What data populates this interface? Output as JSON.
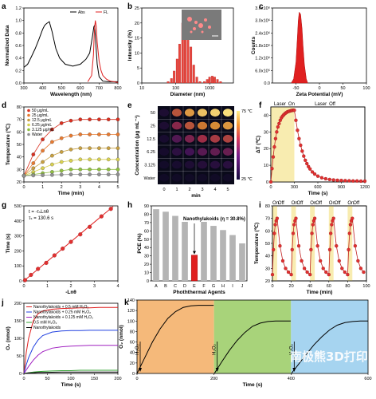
{
  "panel_labels": [
    "a",
    "b",
    "c",
    "d",
    "e",
    "f",
    "g",
    "h",
    "i",
    "j",
    "k"
  ],
  "watermark": "南极熊3D打印",
  "chart_data": [
    {
      "id": "a",
      "type": "line",
      "xlabel": "Wavelength (nm)",
      "ylabel": "Normalized Data",
      "xlim": [
        300,
        800
      ],
      "ylim": [
        0,
        1.2
      ],
      "xticks": [
        300,
        400,
        500,
        600,
        700,
        800
      ],
      "yticks": [
        "0.0",
        "0.2",
        "0.4",
        "0.6",
        "0.8",
        "1.0",
        "1.2"
      ],
      "legend": "top-right",
      "series": [
        {
          "name": "Abs",
          "color": "#000000",
          "x": [
            300,
            320,
            340,
            360,
            380,
            400,
            410,
            420,
            430,
            435,
            440,
            450,
            460,
            470,
            490,
            520,
            560,
            600,
            630,
            650,
            665,
            672,
            676,
            680,
            690,
            700,
            720,
            750,
            800
          ],
          "y": [
            0.25,
            0.3,
            0.42,
            0.55,
            0.7,
            0.86,
            0.92,
            0.95,
            0.97,
            0.98,
            0.93,
            0.82,
            0.68,
            0.55,
            0.4,
            0.3,
            0.27,
            0.3,
            0.38,
            0.48,
            0.75,
            0.9,
            0.92,
            0.75,
            0.3,
            0.1,
            0.03,
            0.02,
            0.02
          ]
        },
        {
          "name": "FL",
          "color": "#e02020",
          "x": [
            640,
            660,
            670,
            675,
            680,
            685,
            690,
            700,
            710,
            720,
            740,
            760,
            800
          ],
          "y": [
            0.02,
            0.12,
            0.45,
            0.85,
            1.0,
            0.9,
            0.65,
            0.35,
            0.2,
            0.12,
            0.06,
            0.03,
            0.01
          ]
        }
      ]
    },
    {
      "id": "b",
      "type": "bar",
      "xlabel": "Diameter (nm)",
      "ylabel": "Intensity (%)",
      "xscale": "log",
      "xlim": [
        10,
        5000
      ],
      "ylim": [
        0,
        25
      ],
      "xticks": [
        10,
        100,
        1000
      ],
      "yticks": [
        0,
        5,
        10,
        15,
        20,
        25
      ],
      "x": [
        60,
        75,
        90,
        110,
        130,
        160,
        190,
        230,
        280,
        340,
        420,
        520,
        700,
        850,
        1000,
        1200,
        1400,
        1700,
        2100
      ],
      "values": [
        0.5,
        1.5,
        4,
        8,
        13,
        20,
        22,
        18,
        12,
        6,
        2,
        0.5,
        0.5,
        1.2,
        2,
        2.3,
        2,
        1.2,
        0.5
      ],
      "inset_scale_bar": true
    },
    {
      "id": "c",
      "type": "area",
      "xlabel": "Zeta Potential (mV)",
      "ylabel": "Counts",
      "xlim": [
        -100,
        100
      ],
      "ylim": [
        0,
        3600000
      ],
      "xticks": [
        -50,
        0,
        50,
        100
      ],
      "yticks": [
        "0.0",
        "6.0x10⁵",
        "1.2x10⁶",
        "1.8x10⁶",
        "2.4x10⁶",
        "3.0x10⁶",
        "3.6x10⁶"
      ],
      "x": [
        -60,
        -55,
        -50,
        -47,
        -45,
        -43,
        -40,
        -37,
        -35,
        -32,
        -28,
        -25
      ],
      "y": [
        0,
        200000,
        1000000,
        2200000,
        3000000,
        3400000,
        3300000,
        2600000,
        1800000,
        900000,
        200000,
        0
      ]
    },
    {
      "id": "d",
      "type": "line",
      "xlabel": "Time (min)",
      "ylabel": "Temperature (℃)",
      "xlim": [
        0,
        5
      ],
      "ylim": [
        20,
        80
      ],
      "xticks": [
        0,
        1,
        2,
        3,
        4,
        5
      ],
      "yticks": [
        20,
        30,
        40,
        50,
        60,
        70,
        80
      ],
      "legend": "top-left",
      "x": [
        0,
        0.5,
        1,
        1.5,
        2,
        2.5,
        3,
        3.5,
        4,
        4.5,
        5
      ],
      "series": [
        {
          "name": "50 μg/mL",
          "color": "#d93020",
          "y": [
            25,
            42,
            54,
            62,
            67,
            69,
            70,
            70,
            70,
            70,
            70
          ]
        },
        {
          "name": "25 μg/mL",
          "color": "#e87a30",
          "y": [
            25,
            35,
            45,
            52,
            55,
            57,
            58,
            58,
            58,
            58,
            58
          ]
        },
        {
          "name": "12.5 μg/mL",
          "color": "#c8a040",
          "y": [
            25,
            31,
            36,
            41,
            44,
            46,
            47,
            47,
            47,
            47,
            47
          ]
        },
        {
          "name": "6.25 μg/mL",
          "color": "#d8d050",
          "y": [
            25,
            28,
            31,
            34,
            36,
            37,
            38,
            38,
            38,
            38,
            38
          ]
        },
        {
          "name": "3.125 μg/mL",
          "color": "#90c040",
          "y": [
            25,
            26,
            27,
            28,
            29,
            30,
            30,
            30,
            30,
            30,
            30
          ]
        },
        {
          "name": "Water",
          "color": "#909090",
          "y": [
            25,
            25.2,
            25.4,
            25.6,
            25.8,
            26,
            26,
            26,
            26,
            26,
            26
          ]
        }
      ]
    },
    {
      "id": "e",
      "type": "heatmap",
      "xlabel": "min",
      "ylabel": "Concentration (μg mL⁻¹)",
      "columns": [
        "0",
        "1",
        "2",
        "3",
        "4",
        "5"
      ],
      "rows": [
        "50",
        "25",
        "12.5",
        "6.25",
        "3.125",
        "Water"
      ],
      "colorbar": {
        "top": "75 ℃",
        "bottom": "25 ℃"
      },
      "intensity": [
        [
          0.15,
          0.7,
          0.85,
          0.92,
          0.95,
          0.97
        ],
        [
          0.15,
          0.55,
          0.7,
          0.78,
          0.82,
          0.84
        ],
        [
          0.12,
          0.4,
          0.52,
          0.6,
          0.64,
          0.66
        ],
        [
          0.1,
          0.25,
          0.35,
          0.42,
          0.45,
          0.47
        ],
        [
          0.08,
          0.12,
          0.16,
          0.2,
          0.22,
          0.23
        ],
        [
          0.05,
          0.05,
          0.05,
          0.05,
          0.05,
          0.05
        ]
      ]
    },
    {
      "id": "f",
      "type": "scatter",
      "xlabel": "Time (s)",
      "ylabel": "ΔT (℃)",
      "xlim": [
        0,
        1200
      ],
      "ylim": [
        0,
        45
      ],
      "xticks": [
        0,
        300,
        600,
        900,
        1200
      ],
      "yticks": [
        0,
        10,
        20,
        30,
        40
      ],
      "annotations": [
        {
          "prefix": "Laser",
          "state": "On",
          "x": 40
        },
        {
          "prefix": "Laser",
          "state": "Off",
          "x": 560
        }
      ],
      "laser_on_range": [
        0,
        300
      ],
      "x": [
        0,
        15,
        30,
        45,
        60,
        75,
        90,
        105,
        120,
        135,
        150,
        165,
        180,
        195,
        210,
        225,
        240,
        255,
        270,
        285,
        300,
        320,
        340,
        360,
        380,
        400,
        420,
        440,
        460,
        480,
        500,
        530,
        560,
        600,
        650,
        700,
        750,
        800,
        850,
        900,
        950,
        1000,
        1050,
        1100,
        1150,
        1200
      ],
      "y": [
        0,
        8,
        15,
        21,
        26,
        30,
        33,
        35,
        37,
        38.5,
        39.5,
        40.3,
        41,
        41.5,
        42,
        42.3,
        42.5,
        42.7,
        42.9,
        43,
        43,
        37,
        31,
        26,
        22,
        18.5,
        15.5,
        13,
        11,
        9.2,
        7.8,
        6,
        4.7,
        3.5,
        2.5,
        1.9,
        1.5,
        1.2,
        1,
        0.9,
        0.8,
        0.7,
        0.6,
        0.6,
        0.5,
        0.5
      ]
    },
    {
      "id": "g",
      "type": "scatter",
      "xlabel": "-Lnθ",
      "ylabel": "Time (s)",
      "xlim": [
        0,
        4
      ],
      "ylim": [
        0,
        500
      ],
      "xticks": [
        0,
        1,
        2,
        3,
        4
      ],
      "yticks": [
        0,
        100,
        200,
        300,
        400,
        500
      ],
      "annotation_lines": [
        "t = -τₛLnθ",
        "τₛ = 130.6 s"
      ],
      "fit": {
        "slope": 130.6,
        "intercept": 0
      },
      "x": [
        0.05,
        0.3,
        0.6,
        0.95,
        1.3,
        1.65,
        2.0,
        2.4,
        2.8,
        3.3,
        3.7
      ],
      "y": [
        5,
        40,
        80,
        120,
        170,
        215,
        260,
        310,
        360,
        430,
        480
      ]
    },
    {
      "id": "h",
      "type": "bar",
      "xlabel": "Phoththermal Agents",
      "ylabel": "PCE (%)",
      "ylim": [
        0,
        90
      ],
      "yticks": [
        0,
        10,
        20,
        30,
        40,
        50,
        60,
        70,
        80,
        90
      ],
      "categories": [
        "A",
        "B",
        "C",
        "D",
        "E",
        "F",
        "G",
        "H",
        "I",
        "J"
      ],
      "values": [
        86,
        83,
        78,
        73,
        31,
        72,
        66,
        61,
        55,
        45
      ],
      "highlight": "E",
      "highlight_color": "#e02020",
      "annotation": "Nanothylakoids (η = 30.8%)"
    },
    {
      "id": "i",
      "type": "line",
      "xlabel": "Time (min)",
      "ylabel": "Temperature (℃)",
      "xlim": [
        0,
        100
      ],
      "ylim": [
        20,
        80
      ],
      "xticks": [
        0,
        20,
        40,
        60,
        80,
        100
      ],
      "yticks": [
        20,
        30,
        40,
        50,
        60,
        70,
        80
      ],
      "cycle_labels": [
        "On",
        "Off",
        "On",
        "Off",
        "On",
        "Off",
        "On",
        "Off",
        "On",
        "Off"
      ],
      "on_ranges": [
        [
          0,
          5
        ],
        [
          20,
          25
        ],
        [
          40,
          45
        ],
        [
          60,
          65
        ],
        [
          80,
          85
        ]
      ],
      "x": [
        0,
        1,
        2,
        3,
        4,
        5,
        8,
        11,
        14,
        17,
        20,
        21,
        22,
        23,
        24,
        25,
        28,
        31,
        34,
        37,
        40,
        41,
        42,
        43,
        44,
        45,
        48,
        51,
        54,
        57,
        60,
        61,
        62,
        63,
        64,
        65,
        68,
        71,
        74,
        77,
        80,
        81,
        82,
        83,
        84,
        85,
        88,
        91,
        94,
        97
      ],
      "y": [
        25,
        45,
        58,
        65,
        68,
        70,
        48,
        36,
        30,
        27,
        25,
        45,
        58,
        65,
        68,
        70,
        48,
        36,
        30,
        27,
        25,
        45,
        58,
        65,
        68,
        70,
        48,
        36,
        30,
        27,
        25,
        45,
        58,
        65,
        68,
        70,
        48,
        36,
        30,
        27,
        25,
        45,
        58,
        65,
        68,
        70,
        48,
        36,
        30,
        27
      ]
    },
    {
      "id": "j",
      "type": "line",
      "xlabel": "Time (s)",
      "ylabel": "O₂ (nmol)",
      "xlim": [
        0,
        200
      ],
      "ylim": [
        0,
        200
      ],
      "xticks": [
        0,
        50,
        100,
        150,
        200
      ],
      "yticks": [
        0,
        50,
        100,
        150,
        200
      ],
      "legend": "top-left",
      "x": [
        0,
        5,
        10,
        20,
        30,
        40,
        60,
        80,
        100,
        120,
        140,
        160,
        180,
        200
      ],
      "series": [
        {
          "name": "Nanothylakoids + 0.5 mM H₂O₂",
          "color": "#e02020",
          "y": [
            0,
            60,
            100,
            150,
            170,
            178,
            183,
            185,
            186,
            187,
            187,
            188,
            188,
            188
          ]
        },
        {
          "name": "Nanothylakoids + 0.25 mM H₂O₂",
          "color": "#2040e0",
          "y": [
            0,
            25,
            45,
            75,
            95,
            108,
            118,
            121,
            122,
            122,
            123,
            123,
            123,
            123
          ]
        },
        {
          "name": "Nanothylakoids + 0.125 mM H₂O₂",
          "color": "#a020c0",
          "y": [
            0,
            10,
            20,
            38,
            52,
            62,
            72,
            76,
            78,
            79,
            80,
            80,
            80,
            80
          ]
        },
        {
          "name": "0.5 mM H₂O₂",
          "color": "#30a030",
          "y": [
            0,
            1,
            2,
            4,
            5,
            6,
            7,
            8,
            8,
            9,
            9,
            9,
            9,
            9
          ]
        },
        {
          "name": "Nanothylakoids",
          "color": "#000000",
          "y": [
            0,
            1,
            1.5,
            2,
            3,
            3,
            3.5,
            4,
            4,
            4,
            4,
            4,
            4,
            4
          ]
        }
      ]
    },
    {
      "id": "k",
      "type": "line",
      "xlabel": "Time (s)",
      "ylabel": "O₂ (nmol)",
      "xlim": [
        0,
        600
      ],
      "ylim": [
        0,
        140
      ],
      "xticks": [
        0,
        200,
        400,
        600
      ],
      "yticks": [
        0,
        20,
        40,
        60,
        80,
        100,
        120,
        140
      ],
      "bands": [
        "#f5b97a",
        "#a8d37a",
        "#a6d4f0"
      ],
      "arrow_labels": [
        "H₂O₂",
        "H₂O₂",
        "H₂O₂"
      ],
      "arrow_x": [
        0,
        200,
        400
      ],
      "x": [
        0,
        20,
        40,
        60,
        80,
        100,
        120,
        140,
        160,
        180,
        199,
        201,
        220,
        240,
        260,
        280,
        300,
        320,
        340,
        360,
        380,
        399,
        401,
        420,
        440,
        460,
        480,
        500,
        520,
        540,
        560,
        580,
        600
      ],
      "y": [
        0,
        30,
        60,
        85,
        105,
        118,
        126,
        129,
        130,
        130,
        130,
        0,
        22,
        44,
        63,
        78,
        90,
        96,
        99,
        100,
        100,
        100,
        0,
        18,
        37,
        55,
        70,
        83,
        92,
        97,
        99,
        100,
        100
      ]
    }
  ]
}
